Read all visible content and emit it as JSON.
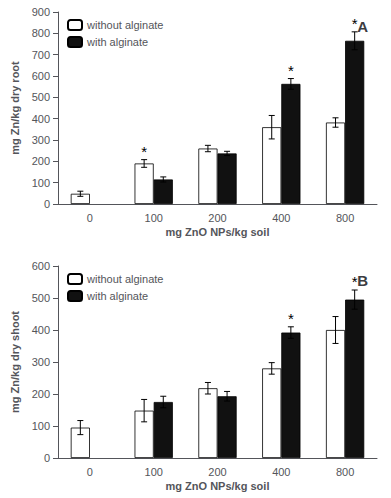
{
  "chart_data": [
    {
      "type": "bar",
      "title": "A",
      "xlabel": "mg ZnO NPs/kg soil",
      "ylabel": "mg Zn/kg dry root",
      "categories": [
        "0",
        "100",
        "200",
        "400",
        "800"
      ],
      "series": [
        {
          "name": "without alginate",
          "color": "#ffffff",
          "values": [
            48,
            190,
            260,
            360,
            382
          ],
          "errors": [
            12,
            18,
            15,
            55,
            22
          ]
        },
        {
          "name": "with alginate",
          "color": "#111111",
          "values": [
            null,
            115,
            237,
            563,
            765
          ],
          "errors": [
            null,
            12,
            10,
            25,
            42
          ]
        }
      ],
      "annotations": [
        {
          "text": "*",
          "category": "100",
          "series": "without alginate"
        },
        {
          "text": "*",
          "category": "400",
          "series": "with alginate"
        },
        {
          "text": "*",
          "category": "800",
          "series": "with alginate"
        }
      ],
      "ylim": [
        0,
        900
      ],
      "yticks": [
        0,
        100,
        200,
        300,
        400,
        500,
        600,
        700,
        800,
        900
      ],
      "legend": "upper left",
      "grid": false
    },
    {
      "type": "bar",
      "title": "B",
      "xlabel": "mg ZnO NPs/kg soil",
      "ylabel": "mg Zn/kg dry shoot",
      "categories": [
        "0",
        "100",
        "200",
        "400",
        "800"
      ],
      "series": [
        {
          "name": "without alginate",
          "color": "#ffffff",
          "values": [
            95,
            148,
            218,
            280,
            400
          ],
          "errors": [
            22,
            35,
            18,
            18,
            42
          ]
        },
        {
          "name": "with alginate",
          "color": "#111111",
          "values": [
            null,
            175,
            193,
            392,
            495
          ],
          "errors": [
            null,
            18,
            15,
            18,
            30
          ]
        }
      ],
      "annotations": [
        {
          "text": "*",
          "category": "400",
          "series": "with alginate"
        },
        {
          "text": "*",
          "category": "800",
          "series": "with alginate"
        }
      ],
      "ylim": [
        0,
        600
      ],
      "yticks": [
        0,
        100,
        200,
        300,
        400,
        500,
        600
      ],
      "legend": "upper left",
      "grid": false
    }
  ]
}
